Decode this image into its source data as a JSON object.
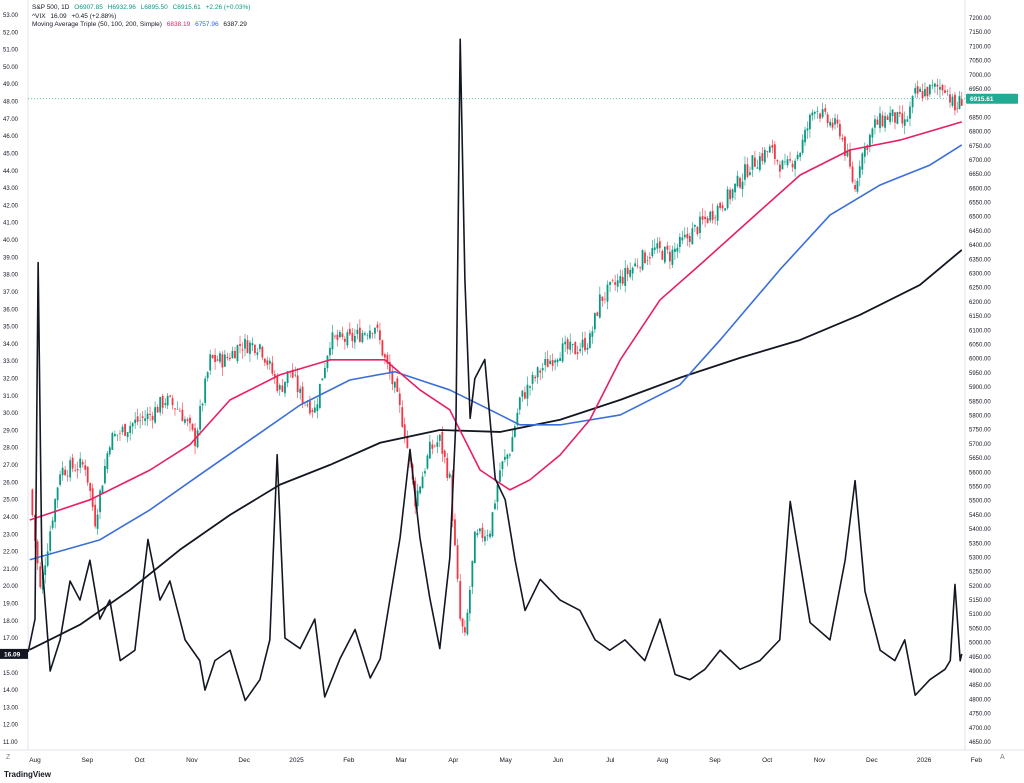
{
  "legend": {
    "symbol": "S&P 500, 1D",
    "open": "O6907.85",
    "high": "H6932.96",
    "low": "L6895.50",
    "close": "C6915.61",
    "change": "+2.26 (+0.03%)",
    "vix_label": "^VIX",
    "vix_value": "16.09",
    "vix_change": "+0.45 (+2.88%)",
    "ma_label": "Moving Average Triple (50, 100, 200, Simple)",
    "ma50": "6838.19",
    "ma100": "6757.96",
    "ma200": "6387.29"
  },
  "footer": {
    "logo": "TradingView",
    "zoom_btn": "Z",
    "auto_btn": "A"
  },
  "chart_data": {
    "type": "line",
    "title": "S&P 500, 1D with ^VIX overlay",
    "x_unit": "months since 2024-08-01",
    "xlim": [
      -0.13,
      17.78
    ],
    "x_ticks": [
      {
        "m": 0,
        "label": "Aug"
      },
      {
        "m": 1,
        "label": "Sep"
      },
      {
        "m": 2,
        "label": "Oct"
      },
      {
        "m": 3,
        "label": "Nov"
      },
      {
        "m": 4,
        "label": "Dec"
      },
      {
        "m": 5,
        "label": "2025"
      },
      {
        "m": 6,
        "label": "Feb"
      },
      {
        "m": 7,
        "label": "Mar"
      },
      {
        "m": 8,
        "label": "Apr"
      },
      {
        "m": 9,
        "label": "May"
      },
      {
        "m": 10,
        "label": "Jun"
      },
      {
        "m": 11,
        "label": "Jul"
      },
      {
        "m": 12,
        "label": "Aug"
      },
      {
        "m": 13,
        "label": "Sep"
      },
      {
        "m": 14,
        "label": "Oct"
      },
      {
        "m": 15,
        "label": "Nov"
      },
      {
        "m": 16,
        "label": "Dec"
      },
      {
        "m": 17,
        "label": "2026"
      },
      {
        "m": 18,
        "label": "Feb"
      }
    ],
    "right_axis": {
      "ylim": [
        4650,
        7200
      ],
      "step": 50,
      "last_price": 6915.61,
      "last_label": "6915.61"
    },
    "left_axis": {
      "ylim": [
        11,
        53
      ],
      "step": 1,
      "last_value": 16.09,
      "last_label": "16.09"
    },
    "colors": {
      "up": "#089981",
      "down": "#f23645",
      "ma50": "#e91e63",
      "ma100": "#3a6fd9",
      "ma200": "#131722",
      "vix": "#131722",
      "last": "#22ab94"
    },
    "spx_close": [
      [
        -0.1,
        5538
      ],
      [
        0.1,
        5186
      ],
      [
        0.48,
        5608
      ],
      [
        0.96,
        5626
      ],
      [
        1.15,
        5432
      ],
      [
        1.43,
        5714
      ],
      [
        1.82,
        5767
      ],
      [
        2.2,
        5802
      ],
      [
        2.49,
        5855
      ],
      [
        2.77,
        5820
      ],
      [
        3.06,
        5714
      ],
      [
        3.35,
        5996
      ],
      [
        3.63,
        5996
      ],
      [
        3.92,
        6049
      ],
      [
        4.3,
        6049
      ],
      [
        4.68,
        5890
      ],
      [
        4.88,
        5960
      ],
      [
        5.07,
        5872
      ],
      [
        5.35,
        5820
      ],
      [
        5.64,
        6066
      ],
      [
        6.02,
        6066
      ],
      [
        6.5,
        6119
      ],
      [
        6.69,
        5996
      ],
      [
        6.88,
        5890
      ],
      [
        7.07,
        5749
      ],
      [
        7.27,
        5503
      ],
      [
        7.55,
        5679
      ],
      [
        7.74,
        5714
      ],
      [
        7.93,
        5573
      ],
      [
        8.13,
        5080
      ],
      [
        8.22,
        5010
      ],
      [
        8.41,
        5362
      ],
      [
        8.7,
        5400
      ],
      [
        8.89,
        5608
      ],
      [
        9.08,
        5679
      ],
      [
        9.27,
        5855
      ],
      [
        9.66,
        5960
      ],
      [
        10.04,
        6031
      ],
      [
        10.33,
        6031
      ],
      [
        10.61,
        6066
      ],
      [
        10.8,
        6207
      ],
      [
        11.19,
        6277
      ],
      [
        11.57,
        6348
      ],
      [
        11.85,
        6383
      ],
      [
        12.14,
        6365
      ],
      [
        12.52,
        6436
      ],
      [
        12.91,
        6506
      ],
      [
        13.29,
        6577
      ],
      [
        13.67,
        6682
      ],
      [
        14.05,
        6735
      ],
      [
        14.34,
        6665
      ],
      [
        14.63,
        6735
      ],
      [
        14.91,
        6894
      ],
      [
        15.11,
        6841
      ],
      [
        15.39,
        6806
      ],
      [
        15.68,
        6594
      ],
      [
        15.77,
        6700
      ],
      [
        16.06,
        6823
      ],
      [
        16.35,
        6858
      ],
      [
        16.63,
        6823
      ],
      [
        16.83,
        6929
      ],
      [
        17.11,
        6946
      ],
      [
        17.4,
        6964
      ],
      [
        17.59,
        6876
      ],
      [
        17.72,
        6915.61
      ]
    ],
    "ma50": [
      [
        -0.1,
        5432
      ],
      [
        1.05,
        5503
      ],
      [
        2.2,
        5608
      ],
      [
        2.96,
        5697
      ],
      [
        3.73,
        5855
      ],
      [
        4.68,
        5943
      ],
      [
        5.64,
        5996
      ],
      [
        6.69,
        5996
      ],
      [
        7.36,
        5890
      ],
      [
        7.93,
        5820
      ],
      [
        8.51,
        5608
      ],
      [
        9.08,
        5538
      ],
      [
        9.46,
        5573
      ],
      [
        10.04,
        5661
      ],
      [
        10.61,
        5785
      ],
      [
        11.19,
        5996
      ],
      [
        11.95,
        6207
      ],
      [
        12.71,
        6330
      ],
      [
        13.67,
        6489
      ],
      [
        14.63,
        6647
      ],
      [
        15.58,
        6735
      ],
      [
        16.54,
        6770
      ],
      [
        17.72,
        6834
      ]
    ],
    "ma100": [
      [
        -0.1,
        5292
      ],
      [
        1.24,
        5362
      ],
      [
        2.2,
        5468
      ],
      [
        3.15,
        5591
      ],
      [
        4.11,
        5714
      ],
      [
        5.07,
        5837
      ],
      [
        6.02,
        5925
      ],
      [
        6.88,
        5954
      ],
      [
        7.93,
        5890
      ],
      [
        8.7,
        5820
      ],
      [
        9.27,
        5767
      ],
      [
        10.04,
        5767
      ],
      [
        11.19,
        5802
      ],
      [
        12.33,
        5908
      ],
      [
        13.1,
        6066
      ],
      [
        14.24,
        6313
      ],
      [
        15.2,
        6506
      ],
      [
        16.16,
        6612
      ],
      [
        17.11,
        6682
      ],
      [
        17.72,
        6753
      ]
    ],
    "ma200": [
      [
        -0.1,
        4975
      ],
      [
        0.86,
        5063
      ],
      [
        1.82,
        5186
      ],
      [
        2.77,
        5327
      ],
      [
        3.73,
        5450
      ],
      [
        4.68,
        5556
      ],
      [
        5.64,
        5626
      ],
      [
        6.6,
        5704
      ],
      [
        7.74,
        5749
      ],
      [
        8.89,
        5742
      ],
      [
        10.04,
        5785
      ],
      [
        11.19,
        5855
      ],
      [
        12.33,
        5933
      ],
      [
        13.48,
        6003
      ],
      [
        14.63,
        6066
      ],
      [
        15.77,
        6154
      ],
      [
        16.92,
        6260
      ],
      [
        17.72,
        6383
      ]
    ],
    "vix": [
      [
        -0.13,
        16.2
      ],
      [
        0,
        18.1
      ],
      [
        0.06,
        38.7
      ],
      [
        0.13,
        21.6
      ],
      [
        0.29,
        15.1
      ],
      [
        0.48,
        16.9
      ],
      [
        0.67,
        20.3
      ],
      [
        0.86,
        19.2
      ],
      [
        1.05,
        21.5
      ],
      [
        1.24,
        18.1
      ],
      [
        1.43,
        19.2
      ],
      [
        1.63,
        15.7
      ],
      [
        1.91,
        16.3
      ],
      [
        2.16,
        22.7
      ],
      [
        2.39,
        19.2
      ],
      [
        2.58,
        20.3
      ],
      [
        2.87,
        16.9
      ],
      [
        3.15,
        15.7
      ],
      [
        3.25,
        14.0
      ],
      [
        3.44,
        15.7
      ],
      [
        3.73,
        16.3
      ],
      [
        4.02,
        13.4
      ],
      [
        4.3,
        14.6
      ],
      [
        4.49,
        16.9
      ],
      [
        4.63,
        27.6
      ],
      [
        4.78,
        17.0
      ],
      [
        5.07,
        16.4
      ],
      [
        5.35,
        18.1
      ],
      [
        5.54,
        13.6
      ],
      [
        5.83,
        15.8
      ],
      [
        6.12,
        17.5
      ],
      [
        6.41,
        14.7
      ],
      [
        6.6,
        15.8
      ],
      [
        6.79,
        19.3
      ],
      [
        6.98,
        22.8
      ],
      [
        7.17,
        27.9
      ],
      [
        7.36,
        22.8
      ],
      [
        7.55,
        19.3
      ],
      [
        7.74,
        16.4
      ],
      [
        7.93,
        21.6
      ],
      [
        8.05,
        29.7
      ],
      [
        8.13,
        51.6
      ],
      [
        8.22,
        37.7
      ],
      [
        8.32,
        29.7
      ],
      [
        8.41,
        32.0
      ],
      [
        8.6,
        33.1
      ],
      [
        8.8,
        26.2
      ],
      [
        8.99,
        25.0
      ],
      [
        9.18,
        21.5
      ],
      [
        9.37,
        18.6
      ],
      [
        9.66,
        20.4
      ],
      [
        10.04,
        19.2
      ],
      [
        10.42,
        18.6
      ],
      [
        10.71,
        16.9
      ],
      [
        10.99,
        16.3
      ],
      [
        11.28,
        16.9
      ],
      [
        11.66,
        15.7
      ],
      [
        11.95,
        18.1
      ],
      [
        12.24,
        14.9
      ],
      [
        12.52,
        14.6
      ],
      [
        12.81,
        15.2
      ],
      [
        13.1,
        16.3
      ],
      [
        13.48,
        15.2
      ],
      [
        13.86,
        15.7
      ],
      [
        14.24,
        16.9
      ],
      [
        14.44,
        24.9
      ],
      [
        14.53,
        23.2
      ],
      [
        14.82,
        17.9
      ],
      [
        15.2,
        16.9
      ],
      [
        15.49,
        21.5
      ],
      [
        15.68,
        26.1
      ],
      [
        15.87,
        19.7
      ],
      [
        16.16,
        16.3
      ],
      [
        16.44,
        15.7
      ],
      [
        16.63,
        16.9
      ],
      [
        16.83,
        13.7
      ],
      [
        17.11,
        14.6
      ],
      [
        17.4,
        15.2
      ],
      [
        17.5,
        15.7
      ],
      [
        17.59,
        20.1
      ],
      [
        17.69,
        15.7
      ],
      [
        17.72,
        16.09
      ]
    ]
  }
}
